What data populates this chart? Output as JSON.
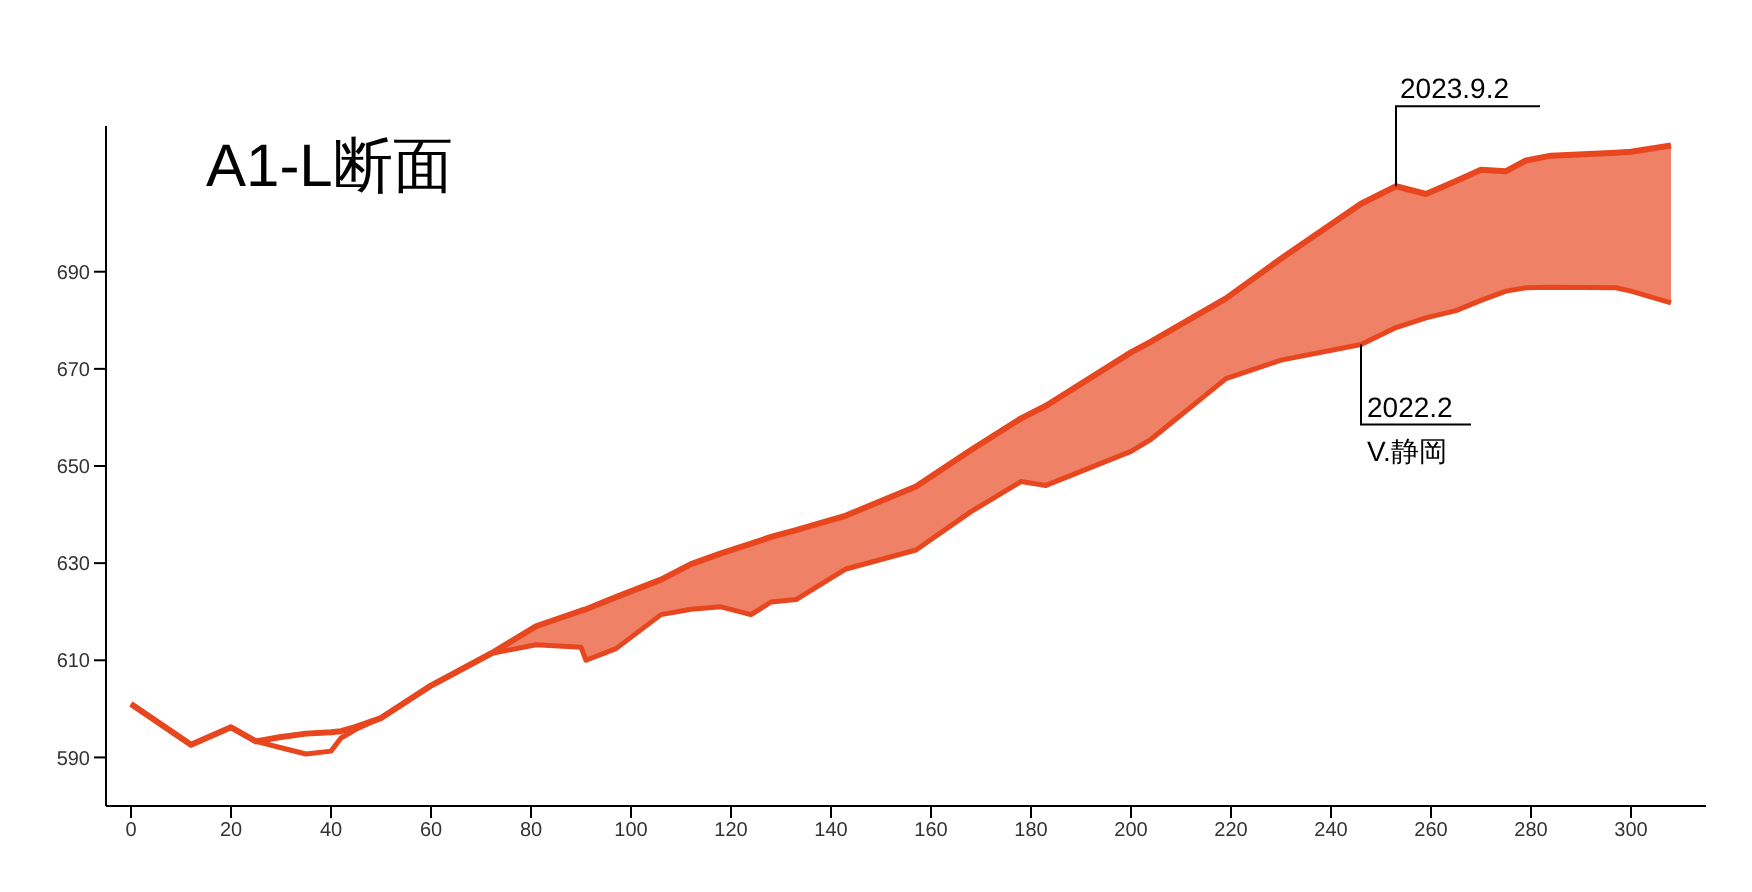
{
  "chart_data": {
    "type": "line",
    "title": "A1-L断面",
    "x": [
      0,
      5,
      12,
      20,
      25,
      30,
      35,
      40,
      42,
      45,
      50,
      60,
      72,
      81,
      90,
      91,
      97,
      106,
      112,
      118,
      124,
      128,
      133,
      143,
      157,
      168,
      178,
      183,
      200,
      204,
      219,
      230,
      246,
      253,
      259,
      265,
      270,
      275,
      279,
      284,
      297,
      300,
      308
    ],
    "series": [
      {
        "color": "#e8461e",
        "values": [
          601,
          597.5,
          592.6,
          596.2,
          593.3,
          594.2,
          594.9,
          595.2,
          595.4,
          596.3,
          598.1,
          604.8,
          611.4,
          617,
          620.2,
          620.5,
          623,
          626.6,
          629.8,
          632,
          634,
          635.4,
          636.8,
          639.8,
          645.8,
          653.3,
          659.8,
          662.4,
          673.4,
          675.6,
          684.5,
          692.7,
          704,
          707.6,
          706,
          708.7,
          711,
          710.7,
          712.9,
          713.9,
          714.5,
          714.7,
          716
        ],
        "lower": [
          null,
          null,
          null,
          null,
          null,
          null,
          null,
          null,
          null,
          null,
          null,
          null,
          611.4,
          613.2,
          612.7,
          610,
          612.4,
          619.4,
          620.5,
          621,
          619.4,
          622,
          622.5,
          628.8,
          632.7,
          640.6,
          646.8,
          646,
          653,
          655.5,
          668,
          671.8,
          675,
          678.5,
          680.5,
          682,
          684.1,
          686,
          686.7,
          686.8,
          686.7,
          686,
          683.6
        ],
        "upper": [
          null,
          null,
          null,
          null,
          null,
          null,
          null,
          null,
          null,
          null,
          null,
          null,
          611.4,
          617,
          620.2,
          620.5,
          623,
          626.6,
          629.8,
          632,
          634,
          635.4,
          636.8,
          639.8,
          645.8,
          653.3,
          659.8,
          662.4,
          673.4,
          675.6,
          684.5,
          692.7,
          704,
          707.6,
          706,
          708.7,
          711,
          710.7,
          712.9,
          713.9,
          714.5,
          714.7,
          716
        ]
      },
      {
        "color": "#e8461e",
        "values": [
          601,
          597.5,
          592.6,
          596.2,
          593.3,
          592,
          590.7,
          591.3,
          594,
          595.8,
          598.1,
          604.8,
          611.4,
          613.2,
          612.7,
          610,
          612.4,
          619.4,
          620.5,
          621,
          619.4,
          622,
          622.5,
          628.8,
          632.7,
          640.6,
          646.8,
          646,
          653,
          655.5,
          668,
          671.8,
          675,
          678.5,
          680.5,
          682,
          684.1,
          686,
          686.7,
          686.8,
          686.7,
          686,
          683.6
        ]
      }
    ],
    "annotations": [
      {
        "text": "2023.9.2",
        "x": 253,
        "y": 707.6
      },
      {
        "text": "2022.2\nV.静岡",
        "x": 246,
        "y": 675
      }
    ],
    "xlim": [
      -5,
      315
    ],
    "xticks": [
      0,
      20,
      40,
      60,
      80,
      100,
      120,
      140,
      160,
      180,
      200,
      220,
      240,
      260,
      280,
      300
    ],
    "ylim": [
      580,
      720
    ],
    "yticks": [
      590,
      610,
      630,
      650,
      670,
      690
    ],
    "grid": false,
    "legend": false,
    "marker": "none",
    "line_style": "solid"
  }
}
